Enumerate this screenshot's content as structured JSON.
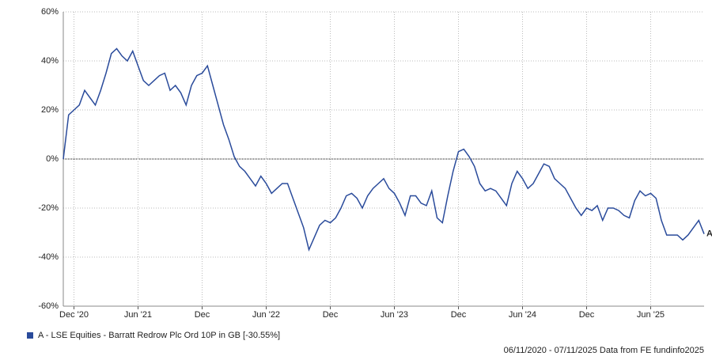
{
  "chart_data": {
    "type": "line",
    "categories": [
      null,
      null,
      "Dec '20",
      null,
      null,
      null,
      null,
      null,
      null,
      null,
      null,
      null,
      null,
      null,
      "Jun '21",
      null,
      null,
      null,
      null,
      null,
      null,
      null,
      null,
      null,
      null,
      null,
      "Dec",
      null,
      null,
      null,
      null,
      null,
      null,
      null,
      null,
      null,
      null,
      null,
      "Jun '22",
      null,
      null,
      null,
      null,
      null,
      null,
      null,
      null,
      null,
      null,
      null,
      "Dec",
      null,
      null,
      null,
      null,
      null,
      null,
      null,
      null,
      null,
      null,
      null,
      "Jun '23",
      null,
      null,
      null,
      null,
      null,
      null,
      null,
      null,
      null,
      null,
      null,
      "Dec",
      null,
      null,
      null,
      null,
      null,
      null,
      null,
      null,
      null,
      null,
      null,
      "Jun '24",
      null,
      null,
      null,
      null,
      null,
      null,
      null,
      null,
      null,
      null,
      null,
      "Dec",
      null,
      null,
      null,
      null,
      null,
      null,
      null,
      null,
      null,
      null,
      null,
      "Jun '25",
      null,
      null,
      null,
      null,
      null,
      null,
      null,
      null,
      null,
      null
    ],
    "series": [
      {
        "name": "A - LSE Equities - Barratt Redrow Plc Ord 10P in GB [-30.55%]",
        "end_label": "A",
        "color": "#2a4b9b",
        "values": [
          0,
          18,
          20,
          22,
          28,
          25,
          22,
          28,
          35,
          43,
          45,
          42,
          40,
          44,
          38,
          32,
          30,
          32,
          34,
          35,
          28,
          30,
          27,
          22,
          30,
          34,
          35,
          38,
          30,
          22,
          14,
          8,
          1,
          -3,
          -5,
          -8,
          -11,
          -7,
          -10,
          -14,
          -12,
          -10,
          -10,
          -16,
          -22,
          -28,
          -37,
          -32,
          -27,
          -25,
          -26,
          -24,
          -20,
          -15,
          -14,
          -16,
          -20,
          -15,
          -12,
          -10,
          -8,
          -12,
          -14,
          -18,
          -23,
          -15,
          -15,
          -18,
          -19,
          -13,
          -24,
          -26,
          -15,
          -5,
          3,
          4,
          1,
          -3,
          -10,
          -13,
          -12,
          -13,
          -16,
          -19,
          -10,
          -5,
          -8,
          -12,
          -10,
          -6,
          -2,
          -3,
          -8,
          -10,
          -12,
          -16,
          -20,
          -23,
          -20,
          -21,
          -19,
          -25,
          -20,
          -20,
          -21,
          -23,
          -24,
          -17,
          -13,
          -15,
          -14,
          -16,
          -25,
          -31,
          -31,
          -31,
          -33,
          -31,
          -28,
          -25,
          -30.55
        ]
      }
    ],
    "ylim": [
      -60,
      60
    ],
    "yticks": [
      {
        "value": -60,
        "label": "-60%"
      },
      {
        "value": -40,
        "label": "-40%"
      },
      {
        "value": -20,
        "label": "-20%"
      },
      {
        "value": 0,
        "label": "0%"
      },
      {
        "value": 20,
        "label": "20%"
      },
      {
        "value": 40,
        "label": "40%"
      },
      {
        "value": 60,
        "label": "60%"
      }
    ],
    "grid": true,
    "footer": "06/11/2020 - 07/11/2025 Data from FE fundinfo2025"
  }
}
